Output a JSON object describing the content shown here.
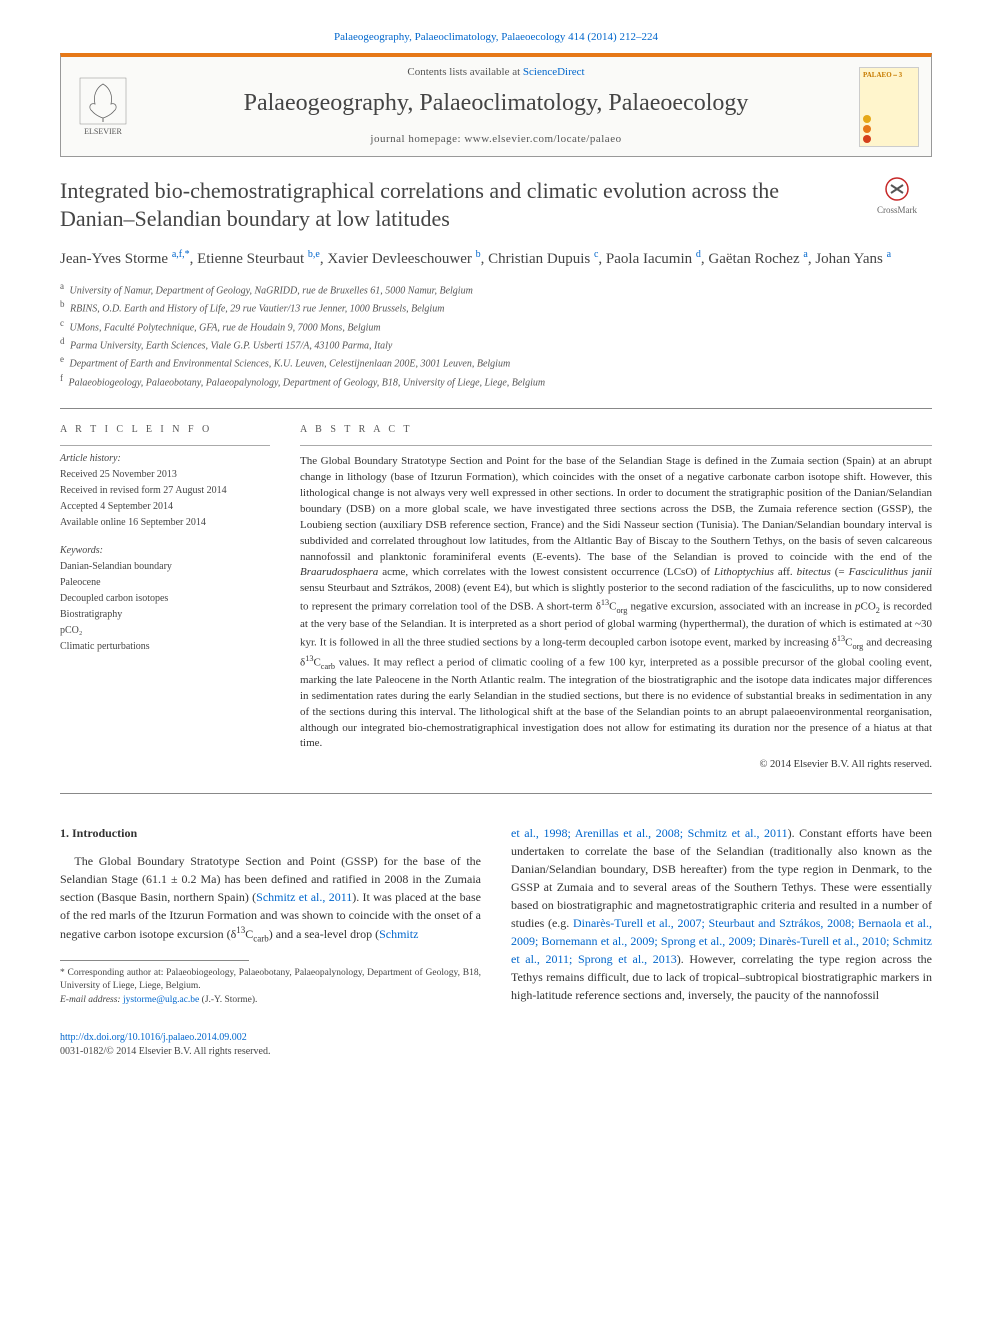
{
  "top_link": "Palaeogeography, Palaeoclimatology, Palaeoecology 414 (2014) 212–224",
  "header": {
    "contents_prefix": "Contents lists available at ",
    "contents_link": "ScienceDirect",
    "journal_title": "Palaeogeography, Palaeoclimatology, Palaeoecology",
    "homepage_prefix": "journal homepage: ",
    "homepage": "www.elsevier.com/locate/palaeo",
    "publisher": "ELSEVIER",
    "cover_label": "PALAEO ⎯ 3"
  },
  "crossmark_label": "CrossMark",
  "article": {
    "title": "Integrated bio-chemostratigraphical correlations and climatic evolution across the Danian–Selandian boundary at low latitudes",
    "authors_html": "Jean-Yves Storme <sup>a,f,*</sup>, Etienne Steurbaut <sup>b,e</sup>, Xavier Devleeschouwer <sup>b</sup>, Christian Dupuis <sup>c</sup>, Paola Iacumin <sup>d</sup>, Gaëtan Rochez <sup>a</sup>, Johan Yans <sup>a</sup>",
    "affiliations": [
      {
        "sup": "a",
        "text": "University of Namur, Department of Geology, NaGRIDD, rue de Bruxelles 61, 5000 Namur, Belgium"
      },
      {
        "sup": "b",
        "text": "RBINS, O.D. Earth and History of Life, 29 rue Vautier/13 rue Jenner, 1000 Brussels, Belgium"
      },
      {
        "sup": "c",
        "text": "UMons, Faculté Polytechnique, GFA, rue de Houdain 9, 7000 Mons, Belgium"
      },
      {
        "sup": "d",
        "text": "Parma University, Earth Sciences, Viale G.P. Usberti 157/A, 43100 Parma, Italy"
      },
      {
        "sup": "e",
        "text": "Department of Earth and Environmental Sciences, K.U. Leuven, Celestijnenlaan 200E, 3001 Leuven, Belgium"
      },
      {
        "sup": "f",
        "text": "Palaeobiogeology, Palaeobotany, Palaeopalynology, Department of Geology, B18, University of Liege, Liege, Belgium"
      }
    ]
  },
  "article_info": {
    "heading": "A R T I C L E    I N F O",
    "history_label": "Article history:",
    "history": [
      "Received 25 November 2013",
      "Received in revised form 27 August 2014",
      "Accepted 4 September 2014",
      "Available online 16 September 2014"
    ],
    "keywords_label": "Keywords:",
    "keywords": [
      "Danian-Selandian boundary",
      "Paleocene",
      "Decoupled carbon isotopes",
      "Biostratigraphy",
      "pCO₂",
      "Climatic perturbations"
    ]
  },
  "abstract": {
    "heading": "A B S T R A C T",
    "text_html": "The Global Boundary Stratotype Section and Point for the base of the Selandian Stage is defined in the Zumaia section (Spain) at an abrupt change in lithology (base of Itzurun Formation), which coincides with the onset of a negative carbonate carbon isotope shift. However, this lithological change is not always very well expressed in other sections. In order to document the stratigraphic position of the Danian/Selandian boundary (DSB) on a more global scale, we have investigated three sections across the DSB, the Zumaia reference section (GSSP), the Loubieng section (auxiliary DSB reference section, France) and the Sidi Nasseur section (Tunisia). The Danian/Selandian boundary interval is subdivided and correlated throughout low latitudes, from the Altlantic Bay of Biscay to the Southern Tethys, on the basis of seven calcareous nannofossil and planktonic foraminiferal events (E-events). The base of the Selandian is proved to coincide with the end of the <em>Braarudosphaera</em> acme, which correlates with the lowest consistent occurrence (LCsO) of <em>Lithoptychius</em> aff. <em>bitectus</em> (= <em>Fasciculithus janii</em> sensu Steurbaut and Sztrákos, 2008) (event E4), but which is slightly posterior to the second radiation of the fasciculiths, up to now considered to represent the primary correlation tool of the DSB. A short-term δ<sup>13</sup>C<sub>org</sub> negative excursion, associated with an increase in <em>p</em>CO<sub>2</sub> is recorded at the very base of the Selandian. It is interpreted as a short period of global warming (hyperthermal), the duration of which is estimated at ~30 kyr. It is followed in all the three studied sections by a long-term decoupled carbon isotope event, marked by increasing δ<sup>13</sup>C<sub>org</sub> and decreasing δ<sup>13</sup>C<sub>carb</sub> values. It may reflect a period of climatic cooling of a few 100 kyr, interpreted as a possible precursor of the global cooling event, marking the late Paleocene in the North Atlantic realm. The integration of the biostratigraphic and the isotope data indicates major differences in sedimentation rates during the early Selandian in the studied sections, but there is no evidence of substantial breaks in sedimentation in any of the sections during this interval. The lithological shift at the base of the Selandian points to an abrupt palaeoenvironmental reorganisation, although our integrated bio-chemostratigraphical investigation does not allow for estimating its duration nor the presence of a hiatus at that time.",
    "copyright": "© 2014 Elsevier B.V. All rights reserved."
  },
  "body": {
    "section_heading": "1. Introduction",
    "col1_html": "The Global Boundary Stratotype Section and Point (GSSP) for the base of the Selandian Stage (61.1 ± 0.2 Ma) has been defined and ratified in 2008 in the Zumaia section (Basque Basin, northern Spain) (<a href='#'>Schmitz et al., 2011</a>). It was placed at the base of the red marls of the Itzurun Formation and was shown to coincide with the onset of a negative carbon isotope excursion (δ<sup>13</sup>C<sub>carb</sub>) and a sea-level drop (<a href='#'>Schmitz</a>",
    "col2_html": "<a href='#'>et al., 1998; Arenillas et al., 2008; Schmitz et al., 2011</a>). Constant efforts have been undertaken to correlate the base of the Selandian (traditionally also known as the Danian/Selandian boundary, DSB hereafter) from the type region in Denmark, to the GSSP at Zumaia and to several areas of the Southern Tethys. These were essentially based on biostratigraphic and magnetostratigraphic criteria and resulted in a number of studies (e.g. <a href='#'>Dinarès-Turell et al., 2007; Steurbaut and Sztrákos, 2008; Bernaola et al., 2009; Bornemann et al., 2009; Sprong et al., 2009; Dinarès-Turell et al., 2010; Schmitz et al., 2011; Sprong et al., 2013</a>). However, correlating the type region across the Tethys remains difficult, due to lack of tropical–subtropical biostratigraphic markers in high-latitude reference sections and, inversely, the paucity of the nannofossil"
  },
  "footnotes": {
    "corr": "* Corresponding author at: Palaeobiogeology, Palaeobotany, Palaeopalynology, Department of Geology, B18, University of Liege, Liege, Belgium.",
    "email_label": "E-mail address: ",
    "email": "jystorme@ulg.ac.be",
    "email_suffix": " (J.-Y. Storme)."
  },
  "footer": {
    "doi": "http://dx.doi.org/10.1016/j.palaeo.2014.09.002",
    "issn_copyright": "0031-0182/© 2014 Elsevier B.V. All rights reserved."
  },
  "colors": {
    "link": "#0066cc",
    "border_top": "#e67817",
    "cover_bg": "#fff5cc",
    "dot1": "#e6a817",
    "dot2": "#e67817",
    "dot3": "#d43f1a"
  }
}
